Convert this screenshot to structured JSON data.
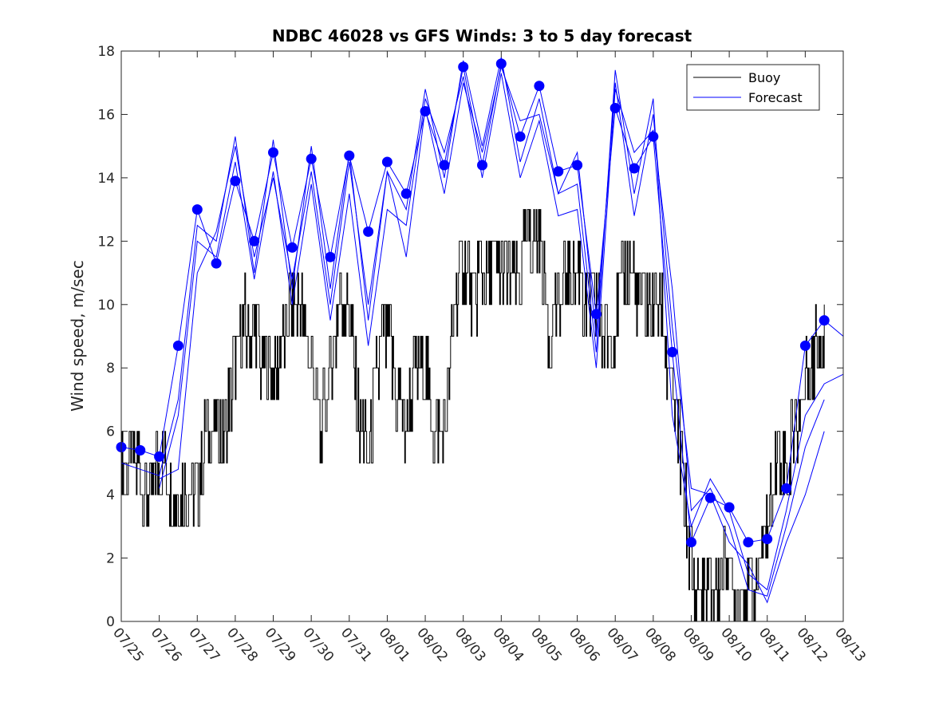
{
  "chart_data": {
    "type": "line",
    "title": "NDBC 46028 vs GFS Winds: 3 to 5 day forecast",
    "xlabel": "",
    "ylabel": "Wind speed, m/sec",
    "x_ticks": [
      "07/25",
      "07/26",
      "07/27",
      "07/28",
      "07/29",
      "07/30",
      "07/31",
      "08/01",
      "08/02",
      "08/03",
      "08/04",
      "08/05",
      "08/06",
      "08/07",
      "08/08",
      "08/09",
      "08/10",
      "08/11",
      "08/12",
      "08/13"
    ],
    "x_unit": "days since 07/25 00:00",
    "xlim": [
      0,
      19
    ],
    "ylim": [
      0,
      18
    ],
    "y_ticks": [
      0,
      2,
      4,
      6,
      8,
      10,
      12,
      14,
      16,
      18
    ],
    "grid": false,
    "legend": {
      "position": "top-right",
      "entries": [
        "Buoy",
        "Forecast"
      ]
    },
    "colors": {
      "buoy": "#000000",
      "forecast": "#0000ff",
      "axes": "#262626"
    },
    "series": [
      {
        "name": "Buoy",
        "x": [
          0.0,
          0.25,
          0.5,
          0.75,
          1.0,
          1.25,
          1.5,
          1.75,
          2.0,
          2.25,
          2.5,
          2.75,
          3.0,
          3.25,
          3.5,
          3.75,
          4.0,
          4.25,
          4.5,
          4.75,
          5.0,
          5.25,
          5.5,
          5.75,
          6.0,
          6.25,
          6.5,
          6.75,
          7.0,
          7.25,
          7.5,
          7.75,
          8.0,
          8.25,
          8.5,
          8.75,
          9.0,
          9.25,
          9.5,
          9.75,
          10.0,
          10.25,
          10.5,
          10.75,
          11.0,
          11.25,
          11.5,
          11.75,
          12.0,
          12.25,
          12.5,
          12.75,
          13.0,
          13.25,
          13.5,
          13.75,
          14.0,
          14.25,
          14.5,
          14.75,
          15.0,
          15.25,
          15.5,
          15.75,
          16.0,
          16.25,
          16.5,
          16.75,
          17.0,
          17.25,
          17.5,
          17.75,
          18.0,
          18.25,
          18.5
        ],
        "y": [
          5.0,
          5.5,
          4.5,
          4.0,
          5.0,
          4.5,
          4.0,
          4.0,
          4.0,
          6.0,
          6.5,
          6.0,
          8.0,
          9.5,
          9.0,
          8.0,
          7.5,
          9.0,
          10.0,
          9.5,
          8.0,
          6.0,
          8.0,
          10.5,
          9.5,
          6.5,
          5.0,
          8.0,
          9.5,
          7.0,
          6.0,
          8.0,
          8.0,
          6.0,
          5.5,
          9.5,
          11.5,
          10.0,
          11.0,
          11.5,
          11.0,
          10.5,
          11.0,
          12.5,
          12.0,
          9.0,
          10.0,
          11.0,
          11.0,
          10.0,
          10.0,
          9.0,
          9.5,
          11.0,
          10.5,
          9.5,
          9.5,
          9.5,
          7.0,
          5.0,
          1.5,
          0.5,
          1.0,
          1.5,
          1.5,
          1.0,
          1.0,
          1.5,
          3.0,
          5.0,
          5.0,
          6.0,
          7.5,
          8.5,
          9.5
        ]
      },
      {
        "name": "Forecast",
        "x": [
          0.0,
          0.5,
          1.0,
          1.5,
          2.0,
          2.5,
          3.0,
          3.5,
          4.0,
          4.5,
          5.0,
          5.5,
          6.0,
          6.5,
          7.0,
          7.5,
          8.0,
          8.5,
          9.0,
          9.5,
          10.0,
          10.5,
          11.0,
          11.5,
          12.0,
          12.5,
          13.0,
          13.5,
          14.0,
          14.5,
          15.0,
          15.5,
          16.0,
          16.5,
          17.0,
          17.5,
          18.0,
          18.5,
          19.0
        ],
        "y": [
          5.5,
          5.4,
          5.2,
          8.7,
          13.0,
          11.3,
          13.9,
          12.0,
          14.8,
          11.8,
          14.6,
          11.5,
          14.7,
          12.3,
          14.5,
          13.5,
          16.1,
          14.4,
          17.5,
          14.4,
          17.6,
          15.3,
          16.9,
          14.2,
          14.4,
          9.7,
          16.2,
          14.3,
          15.3,
          8.5,
          2.5,
          3.9,
          3.6,
          2.5,
          2.6,
          4.2,
          8.7,
          9.5,
          9.0
        ]
      },
      {
        "name": "",
        "x": [
          0.0,
          0.5,
          1.0,
          1.5,
          2.0,
          2.5,
          3.0,
          3.5,
          4.0,
          4.5,
          5.0,
          5.5,
          6.0,
          6.5,
          7.0,
          7.5,
          8.0,
          8.5,
          9.0,
          9.5,
          10.0,
          10.5,
          11.0,
          11.5,
          12.0,
          12.5,
          13.0,
          13.5,
          14.0,
          14.5,
          15.0,
          15.5,
          16.0,
          16.5,
          17.0,
          17.5,
          18.0,
          18.5,
          19.0
        ],
        "y": [
          5.0,
          4.8,
          4.6,
          7.0,
          12.5,
          12.0,
          15.3,
          11.0,
          15.2,
          10.5,
          15.0,
          10.5,
          14.8,
          9.5,
          14.2,
          13.0,
          16.8,
          14.0,
          17.7,
          15.0,
          17.8,
          14.5,
          16.5,
          13.5,
          13.8,
          8.5,
          17.4,
          13.5,
          16.5,
          6.5,
          3.0,
          4.5,
          3.5,
          1.5,
          1.0,
          3.5,
          6.5,
          7.5,
          7.8
        ]
      },
      {
        "name": "",
        "x": [
          1.0,
          1.5,
          2.0,
          2.5,
          3.0,
          3.5,
          4.0,
          4.5,
          5.0,
          5.5,
          6.0,
          6.5,
          7.0,
          7.5,
          8.0,
          8.5,
          9.0,
          9.5,
          10.0,
          10.5,
          11.0,
          11.5,
          12.0,
          12.5,
          13.0,
          13.5,
          14.0,
          14.5,
          15.0,
          15.5,
          16.0,
          16.5,
          17.0,
          17.5,
          18.0,
          18.5
        ],
        "y": [
          4.2,
          6.5,
          12.0,
          11.5,
          14.5,
          10.8,
          14.2,
          10.0,
          13.8,
          9.5,
          13.5,
          8.7,
          13.0,
          12.5,
          16.5,
          14.8,
          17.2,
          14.0,
          17.3,
          14.0,
          15.8,
          12.8,
          13.0,
          8.0,
          16.8,
          14.8,
          15.5,
          10.5,
          3.5,
          4.2,
          3.0,
          1.0,
          0.8,
          3.0,
          5.5,
          7.0
        ]
      },
      {
        "name": "",
        "x": [
          1.0,
          1.5,
          2.0,
          2.5,
          3.0,
          3.5,
          4.0,
          4.5,
          5.0,
          5.5,
          6.0,
          6.5,
          7.0,
          7.5,
          8.0,
          8.5,
          9.0,
          9.5,
          10.0,
          10.5,
          11.0,
          11.5,
          12.0,
          12.5,
          13.0,
          13.5,
          14.0,
          14.5,
          15.0,
          15.5,
          16.0,
          16.5,
          17.0,
          17.5,
          18.0,
          18.5
        ],
        "y": [
          4.5,
          4.8,
          11.0,
          12.3,
          15.0,
          11.5,
          14.0,
          10.8,
          14.2,
          10.0,
          14.5,
          10.0,
          14.2,
          11.5,
          16.2,
          13.5,
          17.0,
          14.8,
          17.5,
          15.8,
          16.0,
          13.5,
          14.8,
          9.0,
          17.0,
          12.8,
          16.0,
          9.3,
          4.2,
          4.0,
          2.5,
          1.8,
          0.6,
          2.5,
          4.0,
          6.0
        ]
      }
    ],
    "forecast_markers": {
      "x": [
        0.0,
        0.5,
        1.0,
        1.5,
        2.0,
        2.5,
        3.0,
        3.5,
        4.0,
        4.5,
        5.0,
        5.5,
        6.0,
        6.5,
        7.0,
        7.5,
        8.0,
        8.5,
        9.0,
        9.5,
        10.0,
        10.5,
        11.0,
        11.5,
        12.0,
        12.5,
        13.0,
        13.5,
        14.0,
        14.5,
        15.0,
        15.5,
        16.0,
        16.5,
        17.0,
        17.5,
        18.0,
        18.5
      ],
      "y": [
        5.5,
        5.4,
        5.2,
        8.7,
        13.0,
        11.3,
        13.9,
        12.0,
        14.8,
        11.8,
        14.6,
        11.5,
        14.7,
        12.3,
        14.5,
        13.5,
        16.1,
        14.4,
        17.5,
        14.4,
        17.6,
        15.3,
        16.9,
        14.2,
        14.4,
        9.7,
        16.2,
        14.3,
        15.3,
        8.5,
        2.5,
        3.9,
        3.6,
        2.5,
        2.6,
        4.2,
        8.7,
        9.5
      ]
    }
  }
}
